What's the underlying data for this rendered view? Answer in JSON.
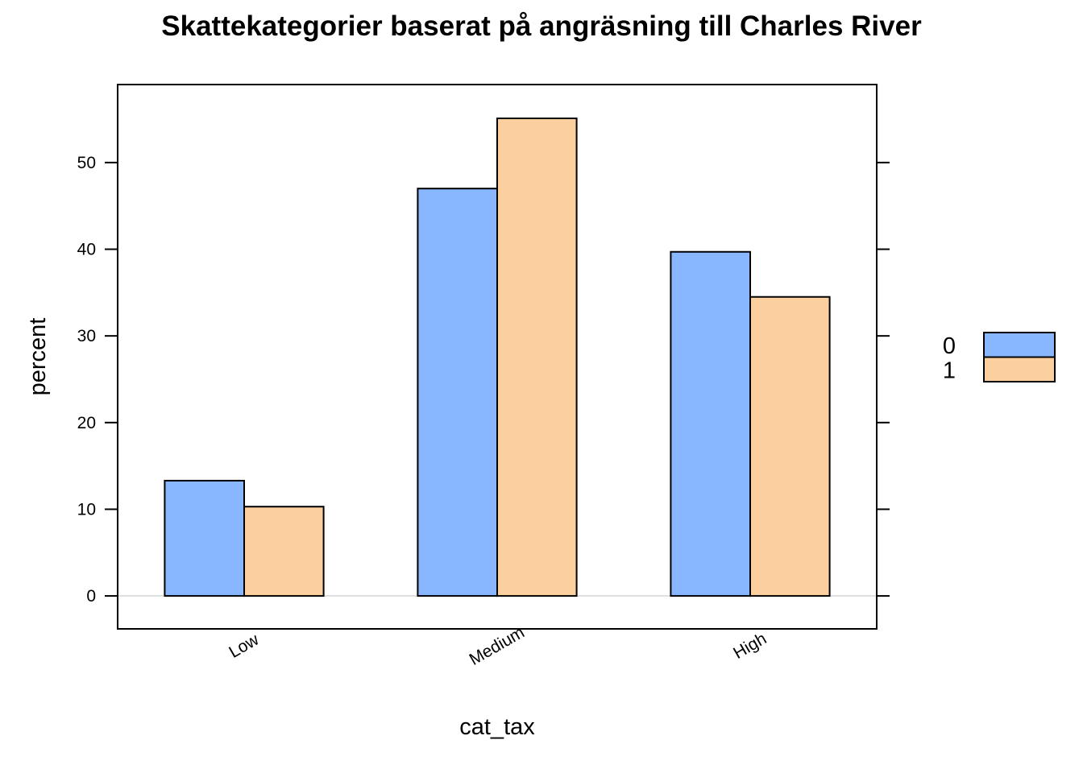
{
  "chart_data": {
    "type": "bar",
    "title": "Skattekategorier baserat på angräsning till Charles River",
    "xlabel": "cat_tax",
    "ylabel": "percent",
    "categories": [
      "Low",
      "Medium",
      "High"
    ],
    "series": [
      {
        "name": "0",
        "values": [
          13.3,
          47.0,
          39.7
        ],
        "color": "#89b7ff"
      },
      {
        "name": "1",
        "values": [
          10.3,
          55.1,
          34.5
        ],
        "color": "#fccf9f"
      }
    ],
    "yticks": [
      0,
      10,
      20,
      30,
      40,
      50
    ],
    "ylim": [
      -3.8,
      59.0
    ],
    "grid": false,
    "legend_position": "right"
  }
}
